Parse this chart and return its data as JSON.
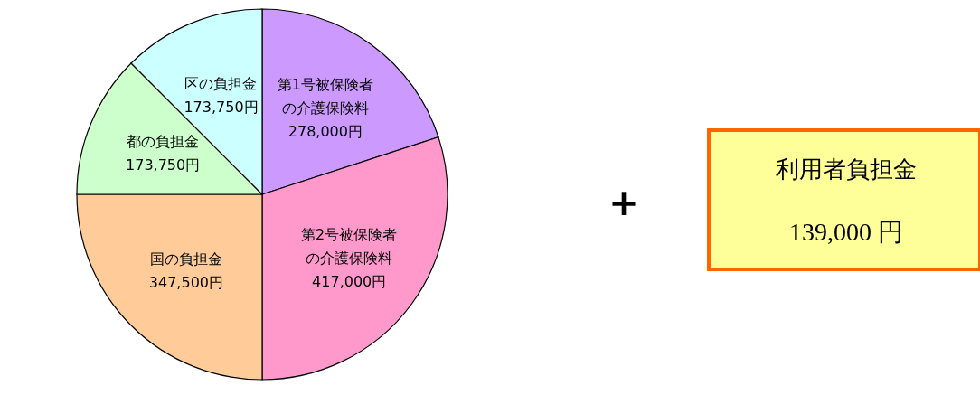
{
  "chart_data": [
    {
      "type": "pie",
      "categories": [
        "第1号被保険者の介護保険料",
        "第2号被保険者の介護保険料",
        "国の負担金",
        "都の負担金",
        "区の負担金"
      ],
      "values": [
        278000,
        417000,
        347500,
        173750,
        173750
      ],
      "value_labels": [
        "278,000円",
        "417,000円",
        "347,500円",
        "173,750円",
        "173,750円"
      ],
      "colors": [
        "#cc99ff",
        "#ff99cc",
        "#ffcc99",
        "#ccffcc",
        "#ccffff"
      ]
    },
    {
      "type": "other",
      "title": "利用者負担金",
      "annotations": [
        "+",
        "139,000 円"
      ]
    }
  ]
}
